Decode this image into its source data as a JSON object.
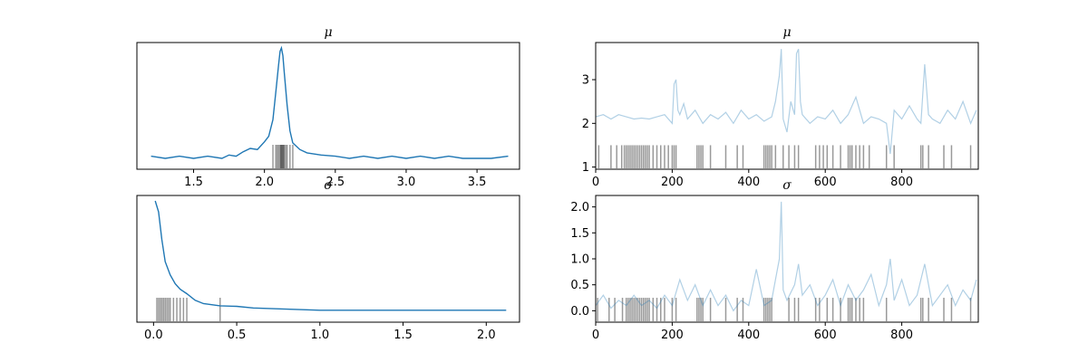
{
  "colors": {
    "line": "#1f77b4",
    "rug": "#000000",
    "frame": "#000000"
  },
  "chart_data": [
    {
      "type": "line",
      "subtype": "kde",
      "title": "μ",
      "xlim": [
        1.1,
        3.8
      ],
      "xticks": [
        1.5,
        2.0,
        2.5,
        3.0,
        3.5
      ],
      "xtick_labels": [
        "1.5",
        "2.0",
        "2.5",
        "3.0",
        "3.5"
      ],
      "yticks": [],
      "grid": false,
      "x": [
        1.2,
        1.3,
        1.4,
        1.5,
        1.6,
        1.7,
        1.75,
        1.8,
        1.85,
        1.9,
        1.95,
        2.0,
        2.03,
        2.06,
        2.08,
        2.1,
        2.11,
        2.12,
        2.13,
        2.14,
        2.16,
        2.18,
        2.2,
        2.25,
        2.3,
        2.4,
        2.5,
        2.6,
        2.7,
        2.8,
        2.9,
        3.0,
        3.1,
        3.2,
        3.3,
        3.4,
        3.5,
        3.6,
        3.72
      ],
      "y": [
        0.02,
        0.0,
        0.02,
        0.0,
        0.02,
        0.0,
        0.03,
        0.02,
        0.06,
        0.09,
        0.08,
        0.15,
        0.2,
        0.35,
        0.6,
        0.85,
        0.97,
        1.0,
        0.93,
        0.78,
        0.48,
        0.25,
        0.14,
        0.08,
        0.05,
        0.03,
        0.02,
        0.0,
        0.02,
        0.0,
        0.02,
        0.0,
        0.02,
        0.0,
        0.02,
        0.0,
        0.0,
        0.0,
        0.02
      ]
    },
    {
      "type": "line",
      "subtype": "trace",
      "title": "μ",
      "xlim": [
        0,
        1000
      ],
      "ylim": [
        0.95,
        3.85
      ],
      "xticks": [
        0,
        200,
        400,
        600,
        800
      ],
      "xtick_labels": [
        "0",
        "200",
        "400",
        "600",
        "800"
      ],
      "yticks": [
        1,
        2,
        3
      ],
      "ytick_labels": [
        "1",
        "2",
        "3"
      ],
      "grid": false,
      "x": [
        0,
        20,
        40,
        60,
        80,
        100,
        120,
        140,
        160,
        180,
        200,
        205,
        210,
        215,
        220,
        230,
        240,
        260,
        280,
        300,
        320,
        340,
        360,
        380,
        400,
        420,
        440,
        460,
        470,
        480,
        485,
        490,
        500,
        510,
        520,
        525,
        530,
        535,
        540,
        560,
        580,
        600,
        620,
        640,
        660,
        680,
        700,
        720,
        740,
        760,
        770,
        780,
        800,
        820,
        840,
        850,
        860,
        870,
        880,
        900,
        920,
        940,
        960,
        980,
        995
      ],
      "y": [
        2.15,
        2.2,
        2.1,
        2.2,
        2.15,
        2.1,
        2.12,
        2.1,
        2.15,
        2.2,
        2.0,
        2.9,
        3.0,
        2.3,
        2.2,
        2.45,
        2.1,
        2.3,
        2.0,
        2.2,
        2.1,
        2.25,
        2.0,
        2.3,
        2.1,
        2.2,
        2.05,
        2.15,
        2.5,
        3.1,
        3.7,
        2.1,
        1.8,
        2.5,
        2.2,
        3.6,
        3.7,
        2.5,
        2.2,
        2.0,
        2.15,
        2.1,
        2.3,
        2.0,
        2.2,
        2.6,
        2.0,
        2.15,
        2.1,
        2.0,
        1.3,
        2.3,
        2.1,
        2.4,
        2.1,
        2.0,
        3.35,
        2.2,
        2.1,
        2.0,
        2.3,
        2.1,
        2.5,
        2.0,
        2.3
      ]
    },
    {
      "type": "line",
      "subtype": "kde",
      "title": "σ",
      "xlim": [
        -0.1,
        2.2
      ],
      "xticks": [
        0.0,
        0.5,
        1.0,
        1.5,
        2.0
      ],
      "xtick_labels": [
        "0.0",
        "0.5",
        "1.0",
        "1.5",
        "2.0"
      ],
      "yticks": [],
      "grid": false,
      "x": [
        0.01,
        0.03,
        0.05,
        0.07,
        0.1,
        0.13,
        0.16,
        0.2,
        0.25,
        0.3,
        0.4,
        0.5,
        0.6,
        0.8,
        1.0,
        1.2,
        1.5,
        1.8,
        2.12
      ],
      "y": [
        1.0,
        0.9,
        0.65,
        0.45,
        0.33,
        0.25,
        0.2,
        0.16,
        0.1,
        0.07,
        0.05,
        0.045,
        0.03,
        0.02,
        0.01,
        0.01,
        0.01,
        0.01,
        0.01
      ]
    },
    {
      "type": "line",
      "subtype": "trace",
      "title": "σ",
      "xlim": [
        0,
        1000
      ],
      "ylim": [
        -0.22,
        2.22
      ],
      "xticks": [
        0,
        200,
        400,
        600,
        800
      ],
      "xtick_labels": [
        "0",
        "200",
        "400",
        "600",
        "800"
      ],
      "yticks": [
        0.0,
        0.5,
        1.0,
        1.5,
        2.0
      ],
      "ytick_labels": [
        "0.0",
        "0.5",
        "1.0",
        "1.5",
        "2.0"
      ],
      "grid": false,
      "x": [
        0,
        20,
        40,
        60,
        80,
        100,
        120,
        140,
        160,
        180,
        200,
        220,
        240,
        260,
        280,
        300,
        320,
        340,
        360,
        380,
        400,
        420,
        440,
        460,
        470,
        480,
        485,
        490,
        500,
        520,
        530,
        540,
        560,
        580,
        600,
        620,
        640,
        660,
        680,
        700,
        720,
        740,
        760,
        770,
        780,
        800,
        820,
        840,
        860,
        880,
        900,
        920,
        940,
        960,
        980,
        995
      ],
      "y": [
        0.1,
        0.3,
        0.05,
        0.2,
        0.1,
        0.3,
        0.1,
        0.2,
        0.05,
        0.3,
        0.1,
        0.6,
        0.2,
        0.5,
        0.1,
        0.4,
        0.1,
        0.3,
        0.0,
        0.2,
        0.1,
        0.8,
        0.1,
        0.2,
        0.6,
        1.0,
        2.1,
        0.4,
        0.2,
        0.5,
        0.9,
        0.3,
        0.5,
        0.1,
        0.3,
        0.6,
        0.1,
        0.5,
        0.2,
        0.4,
        0.7,
        0.1,
        0.5,
        1.0,
        0.2,
        0.6,
        0.1,
        0.3,
        0.9,
        0.1,
        0.3,
        0.5,
        0.1,
        0.4,
        0.2,
        0.6
      ]
    }
  ],
  "rug": {
    "mu": [
      2.06,
      2.08,
      2.09,
      2.1,
      2.11,
      2.115,
      2.12,
      2.125,
      2.13,
      2.135,
      2.14,
      2.15,
      2.16,
      2.18,
      2.2
    ],
    "mu_iter": [
      8,
      40,
      55,
      68,
      75,
      80,
      85,
      90,
      95,
      100,
      105,
      110,
      115,
      120,
      125,
      130,
      135,
      140,
      150,
      160,
      170,
      180,
      190,
      200,
      205,
      210,
      265,
      270,
      275,
      280,
      300,
      340,
      370,
      385,
      440,
      445,
      450,
      455,
      460,
      470,
      490,
      505,
      520,
      530,
      575,
      585,
      595,
      605,
      620,
      640,
      660,
      665,
      670,
      680,
      690,
      700,
      715,
      760,
      780,
      850,
      855,
      870,
      910,
      930,
      980
    ],
    "sigma": [
      0.02,
      0.03,
      0.04,
      0.05,
      0.06,
      0.07,
      0.08,
      0.09,
      0.1,
      0.12,
      0.14,
      0.16,
      0.18,
      0.2,
      0.4
    ],
    "sigma_iter": [
      5,
      35,
      50,
      70,
      80,
      85,
      90,
      95,
      100,
      105,
      110,
      115,
      120,
      125,
      130,
      135,
      140,
      150,
      160,
      170,
      180,
      200,
      210,
      265,
      270,
      275,
      280,
      300,
      340,
      370,
      385,
      440,
      445,
      450,
      455,
      460,
      505,
      520,
      530,
      575,
      585,
      605,
      620,
      640,
      660,
      665,
      670,
      680,
      690,
      700,
      760,
      850,
      855,
      870,
      910,
      930,
      980
    ]
  }
}
